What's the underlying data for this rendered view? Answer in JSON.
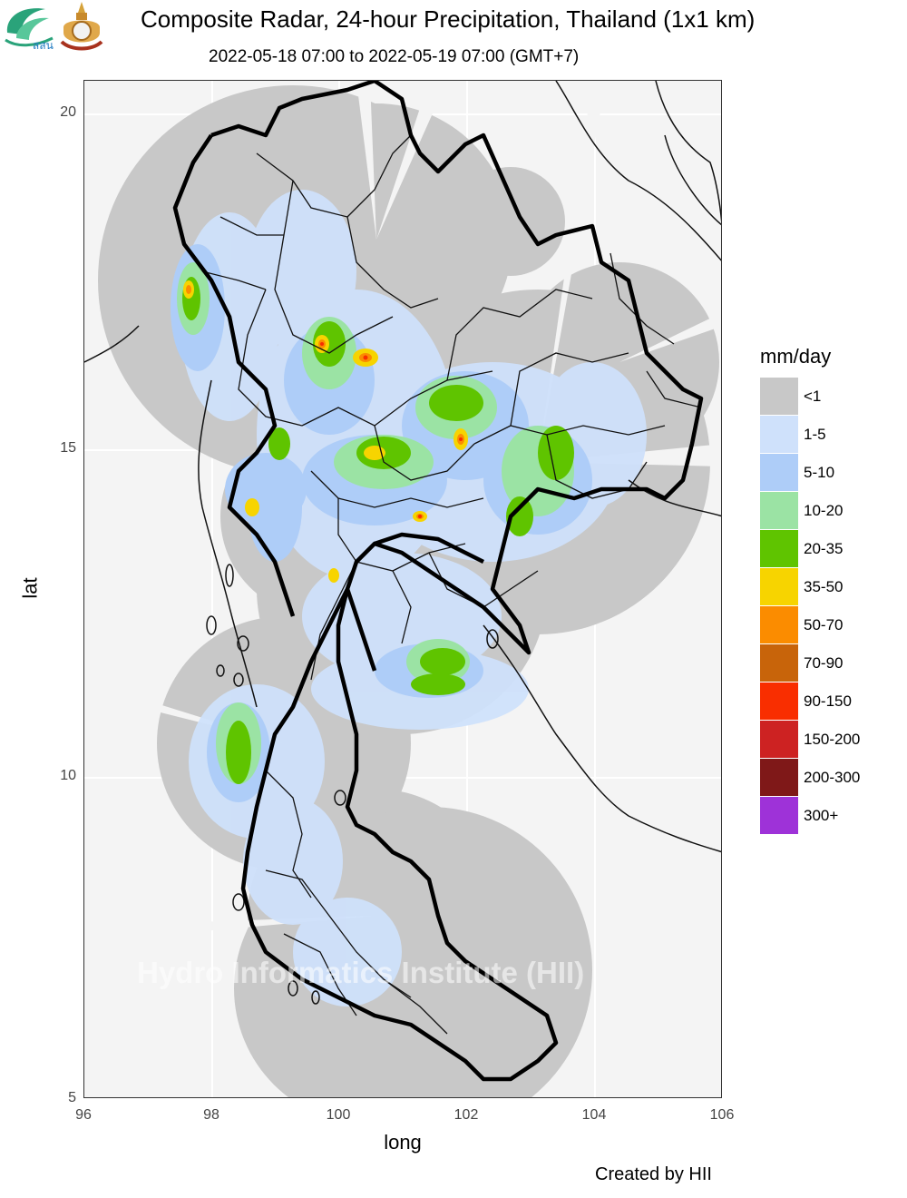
{
  "header": {
    "title": "Composite Radar, 24-hour Precipitation, Thailand (1x1 km)",
    "subtitle": "2022-05-18 07:00 to 2022-05-19 07:00 (GMT+7)",
    "logo_left_text": "สสน"
  },
  "axes": {
    "x_label": "long",
    "y_label": "lat",
    "x_ticks": [
      "96",
      "98",
      "100",
      "102",
      "104",
      "106"
    ],
    "y_ticks": [
      "20",
      "15",
      "10",
      "5"
    ],
    "x_range": [
      96,
      106
    ],
    "y_range": [
      5,
      20.5
    ]
  },
  "legend": {
    "title": "mm/day",
    "items": [
      {
        "label": "<1",
        "color": "#c8c8c8"
      },
      {
        "label": "1-5",
        "color": "#cfe1fb"
      },
      {
        "label": "5-10",
        "color": "#aecdf8"
      },
      {
        "label": "10-20",
        "color": "#9be3a4"
      },
      {
        "label": "20-35",
        "color": "#5fc400"
      },
      {
        "label": "35-50",
        "color": "#f7d400"
      },
      {
        "label": "50-70",
        "color": "#fb8c00"
      },
      {
        "label": "70-90",
        "color": "#c8640a"
      },
      {
        "label": "90-150",
        "color": "#f92e00"
      },
      {
        "label": "150-200",
        "color": "#cd2222"
      },
      {
        "label": "200-300",
        "color": "#7f1818"
      },
      {
        "label": "300+",
        "color": "#9e32d8"
      }
    ]
  },
  "watermark": "Hydro Informatics Institute (HII)",
  "credit": "Created by HII"
}
